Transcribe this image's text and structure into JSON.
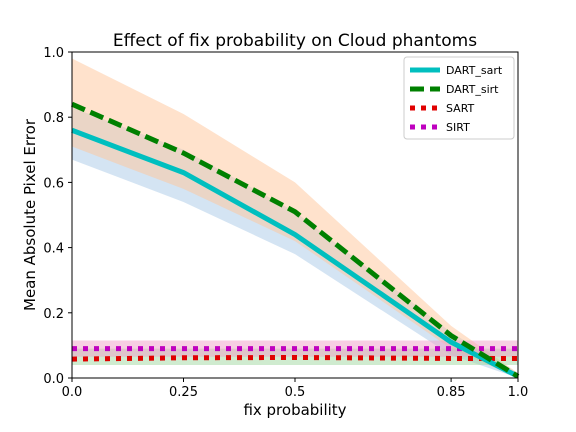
{
  "chart_data": {
    "type": "line",
    "title": "Effect of fix probability on Cloud phantoms",
    "xlabel": "fix probability",
    "ylabel": "Mean Absolute Pixel Error",
    "x": [
      0.0,
      0.25,
      0.5,
      0.85,
      1.0
    ],
    "x_tick_labels": [
      "0.0",
      "0.25",
      "0.5",
      "0.85",
      "1.0"
    ],
    "y_ticks": [
      "0.0",
      "0.2",
      "0.4",
      "0.6",
      "0.8",
      "1.0"
    ],
    "ylim": [
      0,
      1
    ],
    "grid": false,
    "legend_position": "top-right",
    "series": [
      {
        "name": "DART_sart",
        "color": "#00bfbf",
        "style": "solid",
        "values": [
          0.76,
          0.63,
          0.44,
          0.11,
          0.005
        ],
        "band_upper": [
          0.83,
          0.7,
          0.51,
          0.14,
          0.015
        ],
        "band_lower": [
          0.67,
          0.54,
          0.38,
          0.07,
          0.0
        ],
        "band_color": "#a9c9e8"
      },
      {
        "name": "DART_sirt",
        "color": "#008000",
        "style": "dashed",
        "values": [
          0.84,
          0.69,
          0.51,
          0.13,
          0.005
        ],
        "band_upper": [
          0.98,
          0.81,
          0.6,
          0.16,
          0.015
        ],
        "band_lower": [
          0.71,
          0.58,
          0.42,
          0.09,
          0.0
        ],
        "band_color": "#ffc69a"
      },
      {
        "name": "SART",
        "color": "#e00000",
        "style": "dotted",
        "values": [
          0.058,
          0.062,
          0.063,
          0.06,
          0.06
        ],
        "band_upper": [
          0.09,
          0.09,
          0.09,
          0.09,
          0.09
        ],
        "band_lower": [
          0.04,
          0.04,
          0.04,
          0.04,
          0.04
        ],
        "band_color": "#9fd89f"
      },
      {
        "name": "SIRT",
        "color": "#bf00bf",
        "style": "dotted",
        "values": [
          0.09,
          0.09,
          0.09,
          0.09,
          0.09
        ],
        "band_upper": [
          0.115,
          0.115,
          0.115,
          0.115,
          0.115
        ],
        "band_lower": [
          0.065,
          0.065,
          0.065,
          0.065,
          0.065
        ],
        "band_color": "#f0a0c8"
      }
    ]
  }
}
